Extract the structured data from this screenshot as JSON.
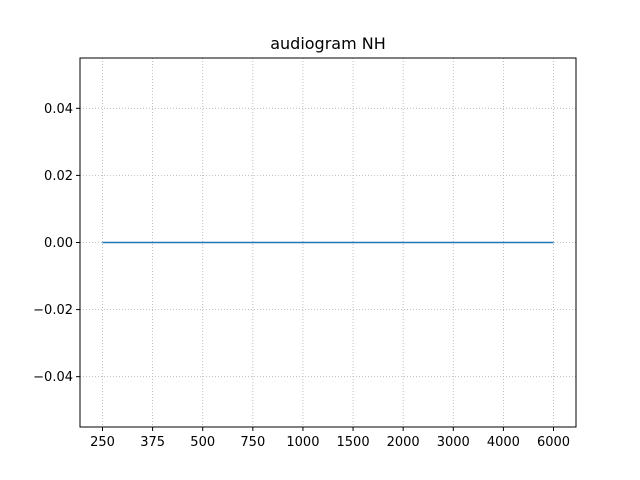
{
  "chart_data": {
    "type": "line",
    "title": "audiogram NH",
    "xlabel": "",
    "ylabel": "",
    "categories": [
      "250",
      "375",
      "500",
      "750",
      "1000",
      "1500",
      "2000",
      "3000",
      "4000",
      "6000"
    ],
    "series": [
      {
        "values": [
          0,
          0,
          0,
          0,
          0,
          0,
          0,
          0,
          0,
          0
        ],
        "color": "#1f77b4"
      }
    ],
    "ylim": [
      -0.055,
      0.055
    ],
    "yticks": [
      0.04,
      0.02,
      0.0,
      -0.02,
      -0.04
    ],
    "ytick_labels": [
      "0.04",
      "0.02",
      "0.00",
      "−0.02",
      "−0.04"
    ],
    "grid": true,
    "grid_style": "dotted",
    "legend": "none"
  }
}
